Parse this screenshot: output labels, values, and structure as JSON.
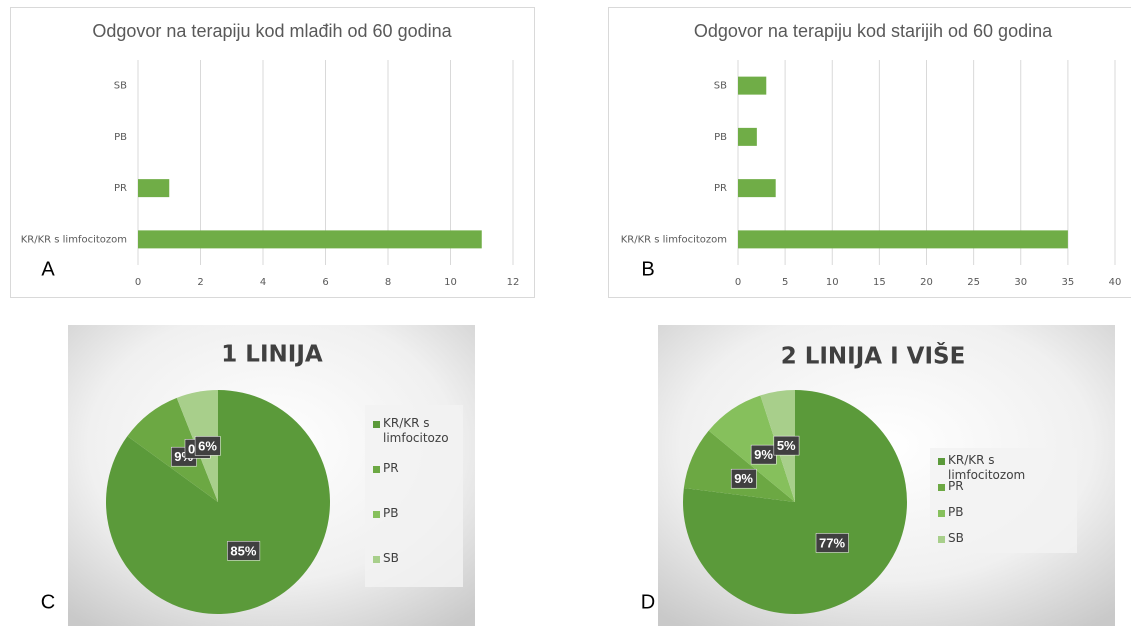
{
  "chart_data": [
    {
      "type": "hbar",
      "label": "A",
      "title": "Odgovor na terapiju kod mlađih od 60 godina",
      "categories": [
        "SB",
        "PB",
        "PR",
        "KR/KR s limfocitozom"
      ],
      "values": [
        0,
        0,
        1,
        11
      ],
      "color": "#70ad47",
      "xlim": [
        0,
        12
      ],
      "xticks": [
        0,
        2,
        4,
        6,
        8,
        10,
        12
      ],
      "grid": true
    },
    {
      "type": "hbar",
      "label": "B",
      "title": "Odgovor na terapiju kod starijih od 60 godina",
      "categories": [
        "SB",
        "PB",
        "PR",
        "KR/KR s limfocitozom"
      ],
      "values": [
        3,
        2,
        4,
        35
      ],
      "color": "#70ad47",
      "xlim": [
        0,
        40
      ],
      "xticks": [
        0,
        5,
        10,
        15,
        20,
        25,
        30,
        35,
        40
      ],
      "grid": true
    },
    {
      "type": "pie",
      "label": "C",
      "title": "1 LINIJA",
      "categories": [
        "KR/KR s limfocitozom",
        "PR",
        "PB",
        "SB"
      ],
      "values": [
        85,
        9,
        0,
        6
      ],
      "value_labels": [
        "85%",
        "9%",
        "0%",
        "6%"
      ],
      "colors": [
        "#5b9a3a",
        "#6ca843",
        "#86c05c",
        "#a8cf8b"
      ],
      "legend": "right"
    },
    {
      "type": "pie",
      "label": "D",
      "title": "2 LINIJA  I VIŠE",
      "categories": [
        "KR/KR s limfocitozom",
        "PR",
        "PB",
        "SB"
      ],
      "values": [
        77,
        9,
        9,
        5
      ],
      "value_labels": [
        "77%",
        "9%",
        "9%",
        "5%"
      ],
      "colors": [
        "#5b9a3a",
        "#6ca843",
        "#86c05c",
        "#a8cf8b"
      ],
      "legend": "right"
    }
  ]
}
